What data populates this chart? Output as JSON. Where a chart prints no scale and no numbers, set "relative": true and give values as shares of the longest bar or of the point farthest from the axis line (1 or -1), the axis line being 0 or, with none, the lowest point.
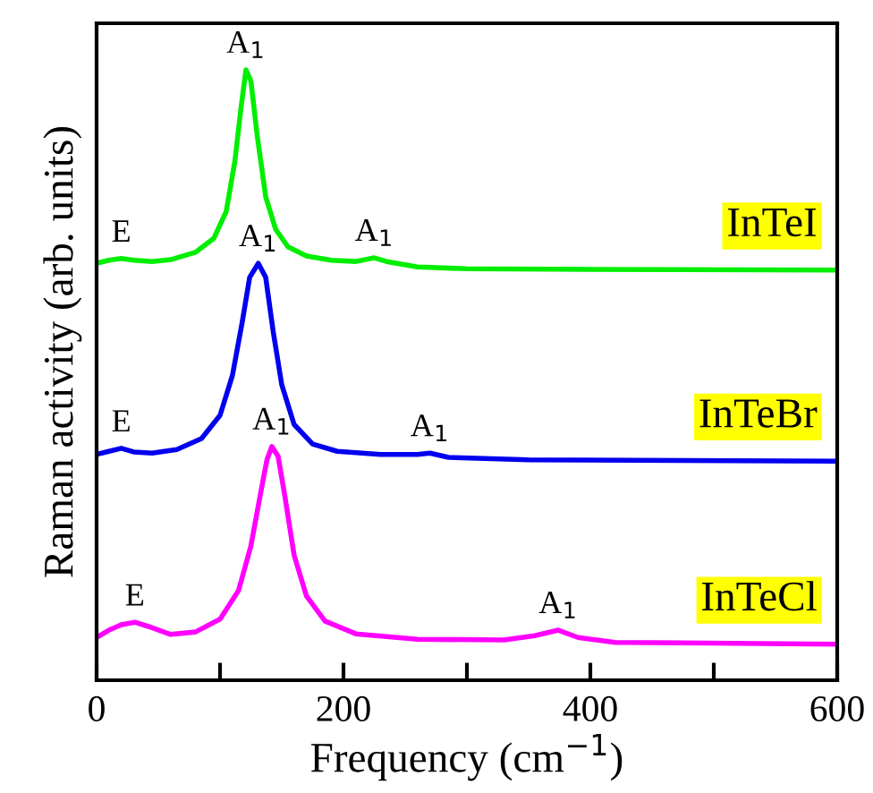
{
  "chart_data": {
    "type": "line",
    "relative": true,
    "xlabel": "Frequency (cm$^{−1}$)",
    "ylabel": "Raman activity (arb. units)",
    "xlim": [
      0,
      600
    ],
    "xticks": [
      0,
      {
        "value": 100,
        "label": null
      },
      200,
      {
        "value": 300,
        "label": null
      },
      400,
      {
        "value": 500,
        "label": null
      },
      600
    ],
    "grid": false,
    "marker": "none",
    "line_style": "solid",
    "series": [
      {
        "name": "InTeI",
        "color": "#00ee00",
        "x": [
          0,
          10,
          20,
          30,
          45,
          60,
          80,
          95,
          105,
          112,
          117,
          121,
          125,
          130,
          137,
          145,
          155,
          170,
          190,
          210,
          225,
          235,
          260,
          300,
          400,
          600
        ],
        "values": [
          0.683,
          0.688,
          0.691,
          0.688,
          0.686,
          0.689,
          0.701,
          0.724,
          0.768,
          0.85,
          0.938,
          1.0,
          0.982,
          0.894,
          0.792,
          0.739,
          0.71,
          0.695,
          0.688,
          0.686,
          0.692,
          0.686,
          0.677,
          0.674,
          0.673,
          0.672
        ]
      },
      {
        "name": "InTeBr",
        "color": "#0000ee",
        "x": [
          0,
          10,
          20,
          30,
          45,
          65,
          85,
          100,
          110,
          118,
          124,
          131,
          137,
          143,
          150,
          160,
          175,
          195,
          230,
          260,
          270,
          285,
          350,
          600
        ],
        "values": [
          0.37,
          0.375,
          0.38,
          0.374,
          0.372,
          0.378,
          0.396,
          0.434,
          0.499,
          0.587,
          0.66,
          0.683,
          0.66,
          0.572,
          0.484,
          0.419,
          0.387,
          0.375,
          0.37,
          0.37,
          0.372,
          0.365,
          0.361,
          0.359
        ]
      },
      {
        "name": "InTeCl",
        "color": "#ff00ff",
        "x": [
          0,
          10,
          20,
          31,
          42,
          60,
          80,
          100,
          115,
          125,
          133,
          138,
          142,
          147,
          152,
          160,
          170,
          185,
          210,
          260,
          330,
          355,
          374,
          390,
          420,
          600
        ],
        "values": [
          0.07,
          0.082,
          0.091,
          0.095,
          0.088,
          0.075,
          0.079,
          0.1,
          0.147,
          0.22,
          0.308,
          0.361,
          0.383,
          0.367,
          0.308,
          0.205,
          0.138,
          0.097,
          0.076,
          0.067,
          0.066,
          0.073,
          0.082,
          0.07,
          0.062,
          0.059
        ]
      }
    ],
    "annotations": [
      {
        "text": "E",
        "x": 20,
        "y": 0.691
      },
      {
        "text": "A$_{1}$",
        "x": 121,
        "y": 1.0
      },
      {
        "text": "A$_{1}$",
        "x": 225,
        "y": 0.692
      },
      {
        "text": "E",
        "x": 20,
        "y": 0.38
      },
      {
        "text": "A$_{1}$",
        "x": 131,
        "y": 0.683
      },
      {
        "text": "A$_{1}$",
        "x": 270,
        "y": 0.372
      },
      {
        "text": "E",
        "x": 31,
        "y": 0.095
      },
      {
        "text": "A$_{1}$",
        "x": 142,
        "y": 0.383
      },
      {
        "text": "A$_{1}$",
        "x": 374,
        "y": 0.082
      }
    ]
  }
}
